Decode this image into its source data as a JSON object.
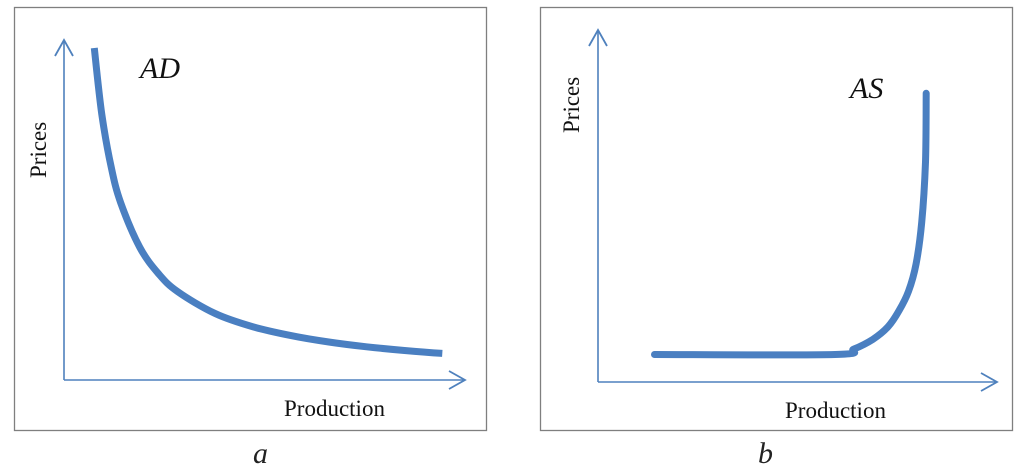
{
  "chart_data": [
    {
      "type": "line",
      "panel_caption": "a",
      "curve_label": "AD",
      "xlabel": "Production",
      "ylabel": "Prices",
      "series": [
        {
          "name": "AD",
          "x": [
            0.8,
            1.0,
            1.25,
            1.5,
            2.0,
            2.5,
            3.0,
            4.0,
            5.0,
            6.0,
            7.0,
            8.0,
            9.0,
            10.0
          ],
          "y": [
            12.5,
            10.0,
            8.0,
            6.67,
            5.0,
            4.0,
            3.33,
            2.5,
            2.0,
            1.67,
            1.43,
            1.25,
            1.11,
            1.0
          ]
        }
      ],
      "xlim": [
        0,
        10.6
      ],
      "ylim": [
        0,
        12.8
      ],
      "grid": false,
      "colors": {
        "frame": "#7f7f7f",
        "axis": "#4f81bd",
        "curve": "#4a7fc1"
      }
    },
    {
      "type": "line",
      "panel_caption": "b",
      "curve_label": "AS",
      "xlabel": "Production",
      "ylabel": "Prices",
      "series": [
        {
          "name": "AS",
          "x": [
            1.5,
            6.3,
            6.8,
            7.3,
            7.7,
            8.0,
            8.25,
            8.45,
            8.6,
            8.7,
            8.72
          ],
          "y": [
            1.0,
            1.0,
            1.2,
            1.55,
            2.0,
            2.6,
            3.3,
            4.3,
            5.8,
            8.0,
            10.5
          ]
        }
      ],
      "xlim": [
        0,
        10.6
      ],
      "ylim": [
        0,
        12.8
      ],
      "grid": false,
      "colors": {
        "frame": "#7f7f7f",
        "axis": "#4f81bd",
        "curve": "#4a7fc1"
      }
    }
  ]
}
